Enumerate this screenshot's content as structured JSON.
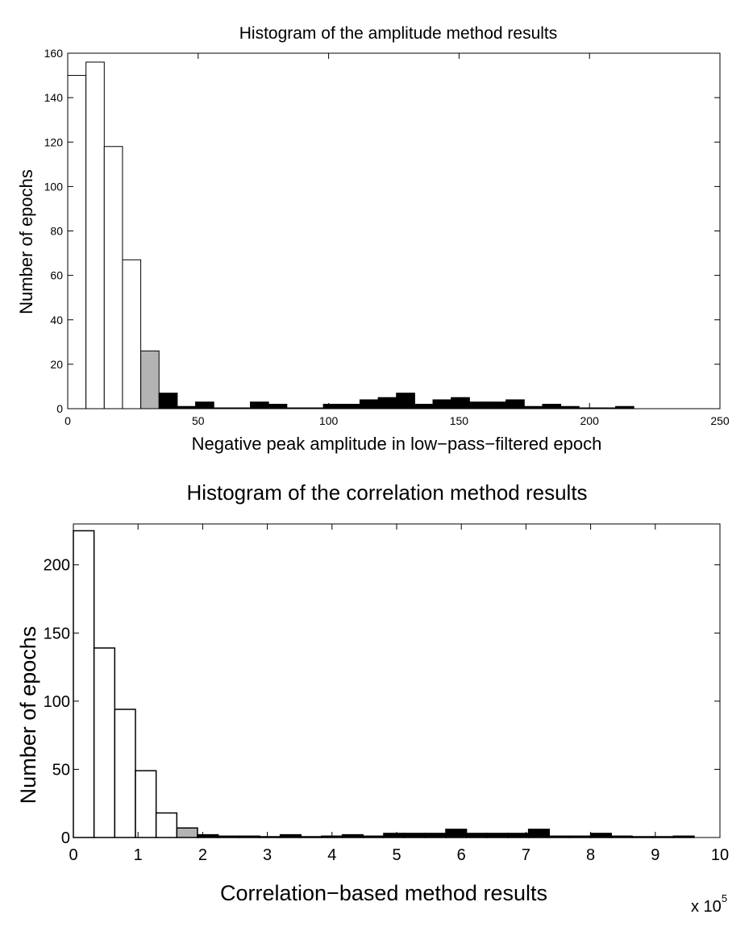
{
  "chart_data": [
    {
      "type": "bar",
      "title": "Histogram of the amplitude method results",
      "xlabel": "Negative peak amplitude in low−pass−filtered epoch",
      "ylabel": "Number of epochs",
      "xlim": [
        0,
        250
      ],
      "ylim": [
        0,
        160
      ],
      "xticks": [
        0,
        50,
        100,
        150,
        200,
        250
      ],
      "yticks": [
        0,
        20,
        40,
        60,
        80,
        100,
        120,
        140,
        160
      ],
      "grid": false,
      "bin_width": 7,
      "bins": [
        {
          "x": 0,
          "value": 150,
          "group": "low"
        },
        {
          "x": 7,
          "value": 156,
          "group": "low"
        },
        {
          "x": 14,
          "value": 118,
          "group": "low"
        },
        {
          "x": 21,
          "value": 67,
          "group": "low"
        },
        {
          "x": 28,
          "value": 26,
          "group": "mid"
        },
        {
          "x": 35,
          "value": 7,
          "group": "high"
        },
        {
          "x": 42,
          "value": 1,
          "group": "high"
        },
        {
          "x": 49,
          "value": 3,
          "group": "high"
        },
        {
          "x": 56,
          "value": 0,
          "group": "high"
        },
        {
          "x": 63,
          "value": 0,
          "group": "high"
        },
        {
          "x": 70,
          "value": 3,
          "group": "high"
        },
        {
          "x": 77,
          "value": 2,
          "group": "high"
        },
        {
          "x": 84,
          "value": 0,
          "group": "high"
        },
        {
          "x": 91,
          "value": 0,
          "group": "high"
        },
        {
          "x": 98,
          "value": 2,
          "group": "high"
        },
        {
          "x": 105,
          "value": 2,
          "group": "high"
        },
        {
          "x": 112,
          "value": 4,
          "group": "high"
        },
        {
          "x": 119,
          "value": 5,
          "group": "high"
        },
        {
          "x": 126,
          "value": 7,
          "group": "high"
        },
        {
          "x": 133,
          "value": 2,
          "group": "high"
        },
        {
          "x": 140,
          "value": 4,
          "group": "high"
        },
        {
          "x": 147,
          "value": 5,
          "group": "high"
        },
        {
          "x": 154,
          "value": 3,
          "group": "high"
        },
        {
          "x": 161,
          "value": 3,
          "group": "high"
        },
        {
          "x": 168,
          "value": 4,
          "group": "high"
        },
        {
          "x": 175,
          "value": 1,
          "group": "high"
        },
        {
          "x": 182,
          "value": 2,
          "group": "high"
        },
        {
          "x": 189,
          "value": 1,
          "group": "high"
        },
        {
          "x": 196,
          "value": 0,
          "group": "high"
        },
        {
          "x": 203,
          "value": 0,
          "group": "high"
        },
        {
          "x": 210,
          "value": 1,
          "group": "high"
        }
      ],
      "group_colors": {
        "low": "#ffffff",
        "mid": "#b3b3b3",
        "high": "#000000"
      }
    },
    {
      "type": "bar",
      "title": "Histogram of the correlation method results",
      "xlabel": "Correlation−based method results",
      "ylabel": "Number of epochs",
      "x_multiplier_label": "x 10",
      "x_multiplier_exponent": "5",
      "xlim": [
        0,
        10
      ],
      "ylim": [
        0,
        230
      ],
      "xticks": [
        0,
        1,
        2,
        3,
        4,
        5,
        6,
        7,
        8,
        9,
        10
      ],
      "yticks": [
        0,
        50,
        100,
        150,
        200
      ],
      "grid": false,
      "bin_width": 0.32,
      "bins": [
        {
          "x": 0.0,
          "value": 225,
          "group": "low"
        },
        {
          "x": 0.32,
          "value": 139,
          "group": "low"
        },
        {
          "x": 0.64,
          "value": 94,
          "group": "low"
        },
        {
          "x": 0.96,
          "value": 49,
          "group": "low"
        },
        {
          "x": 1.28,
          "value": 18,
          "group": "low"
        },
        {
          "x": 1.6,
          "value": 7,
          "group": "mid"
        },
        {
          "x": 1.92,
          "value": 2,
          "group": "high"
        },
        {
          "x": 2.24,
          "value": 1,
          "group": "high"
        },
        {
          "x": 2.56,
          "value": 1,
          "group": "high"
        },
        {
          "x": 2.88,
          "value": 0,
          "group": "high"
        },
        {
          "x": 3.2,
          "value": 2,
          "group": "high"
        },
        {
          "x": 3.52,
          "value": 0,
          "group": "high"
        },
        {
          "x": 3.84,
          "value": 1,
          "group": "high"
        },
        {
          "x": 4.16,
          "value": 2,
          "group": "high"
        },
        {
          "x": 4.48,
          "value": 1,
          "group": "high"
        },
        {
          "x": 4.8,
          "value": 3,
          "group": "high"
        },
        {
          "x": 5.12,
          "value": 3,
          "group": "high"
        },
        {
          "x": 5.44,
          "value": 3,
          "group": "high"
        },
        {
          "x": 5.76,
          "value": 6,
          "group": "high"
        },
        {
          "x": 6.08,
          "value": 3,
          "group": "high"
        },
        {
          "x": 6.4,
          "value": 3,
          "group": "high"
        },
        {
          "x": 6.72,
          "value": 3,
          "group": "high"
        },
        {
          "x": 7.04,
          "value": 6,
          "group": "high"
        },
        {
          "x": 7.36,
          "value": 1,
          "group": "high"
        },
        {
          "x": 7.68,
          "value": 1,
          "group": "high"
        },
        {
          "x": 8.0,
          "value": 3,
          "group": "high"
        },
        {
          "x": 8.32,
          "value": 1,
          "group": "high"
        },
        {
          "x": 8.64,
          "value": 0,
          "group": "high"
        },
        {
          "x": 8.96,
          "value": 0,
          "group": "high"
        },
        {
          "x": 9.28,
          "value": 1,
          "group": "high"
        }
      ],
      "group_colors": {
        "low": "#ffffff",
        "mid": "#b3b3b3",
        "high": "#000000"
      }
    }
  ]
}
